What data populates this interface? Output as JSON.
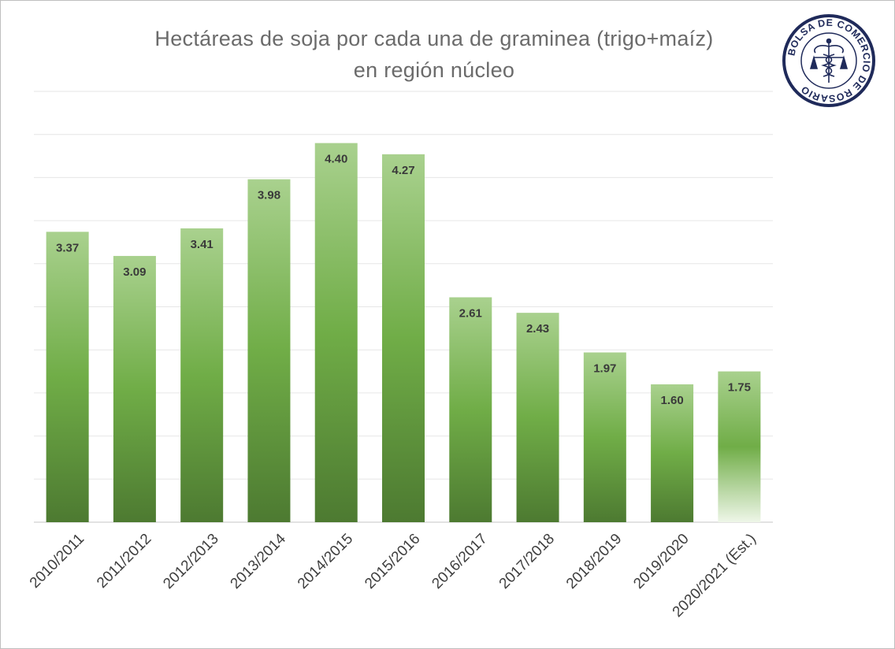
{
  "chart_data": {
    "type": "bar",
    "title": [
      "Hectáreas de soja por cada una de graminea (trigo+maíz)",
      "en región núcleo"
    ],
    "categories": [
      "2010/2011",
      "2011/2012",
      "2012/2013",
      "2013/2014",
      "2014/2015",
      "2015/2016",
      "2016/2017",
      "2017/2018",
      "2018/2019",
      "2019/2020",
      "2020/2021 (Est.)"
    ],
    "series": [
      {
        "values": [
          3.37,
          3.09,
          3.41,
          3.98,
          4.4,
          4.27,
          2.61,
          2.43,
          1.97,
          1.6,
          1.75
        ]
      }
    ],
    "value_labels": [
      "3.37",
      "3.09",
      "3.41",
      "3.98",
      "4.40",
      "4.27",
      "2.61",
      "2.43",
      "1.97",
      "1.60",
      "1.75"
    ],
    "estimated_index": 10,
    "ylim": [
      0,
      5
    ],
    "y_gridlines": 10,
    "y_axis_labels_shown": false,
    "bar_colors": {
      "top": "#a9d18e",
      "middle": "#70ad47",
      "bottom": "#4d7a31",
      "estimate_bottom": "#eef6e8"
    }
  },
  "logo": {
    "text": "BOLSA DE COMERCIO DE ROSARIO",
    "icon": "caduceus-and-scales-icon",
    "color": "#1f2a5a"
  }
}
